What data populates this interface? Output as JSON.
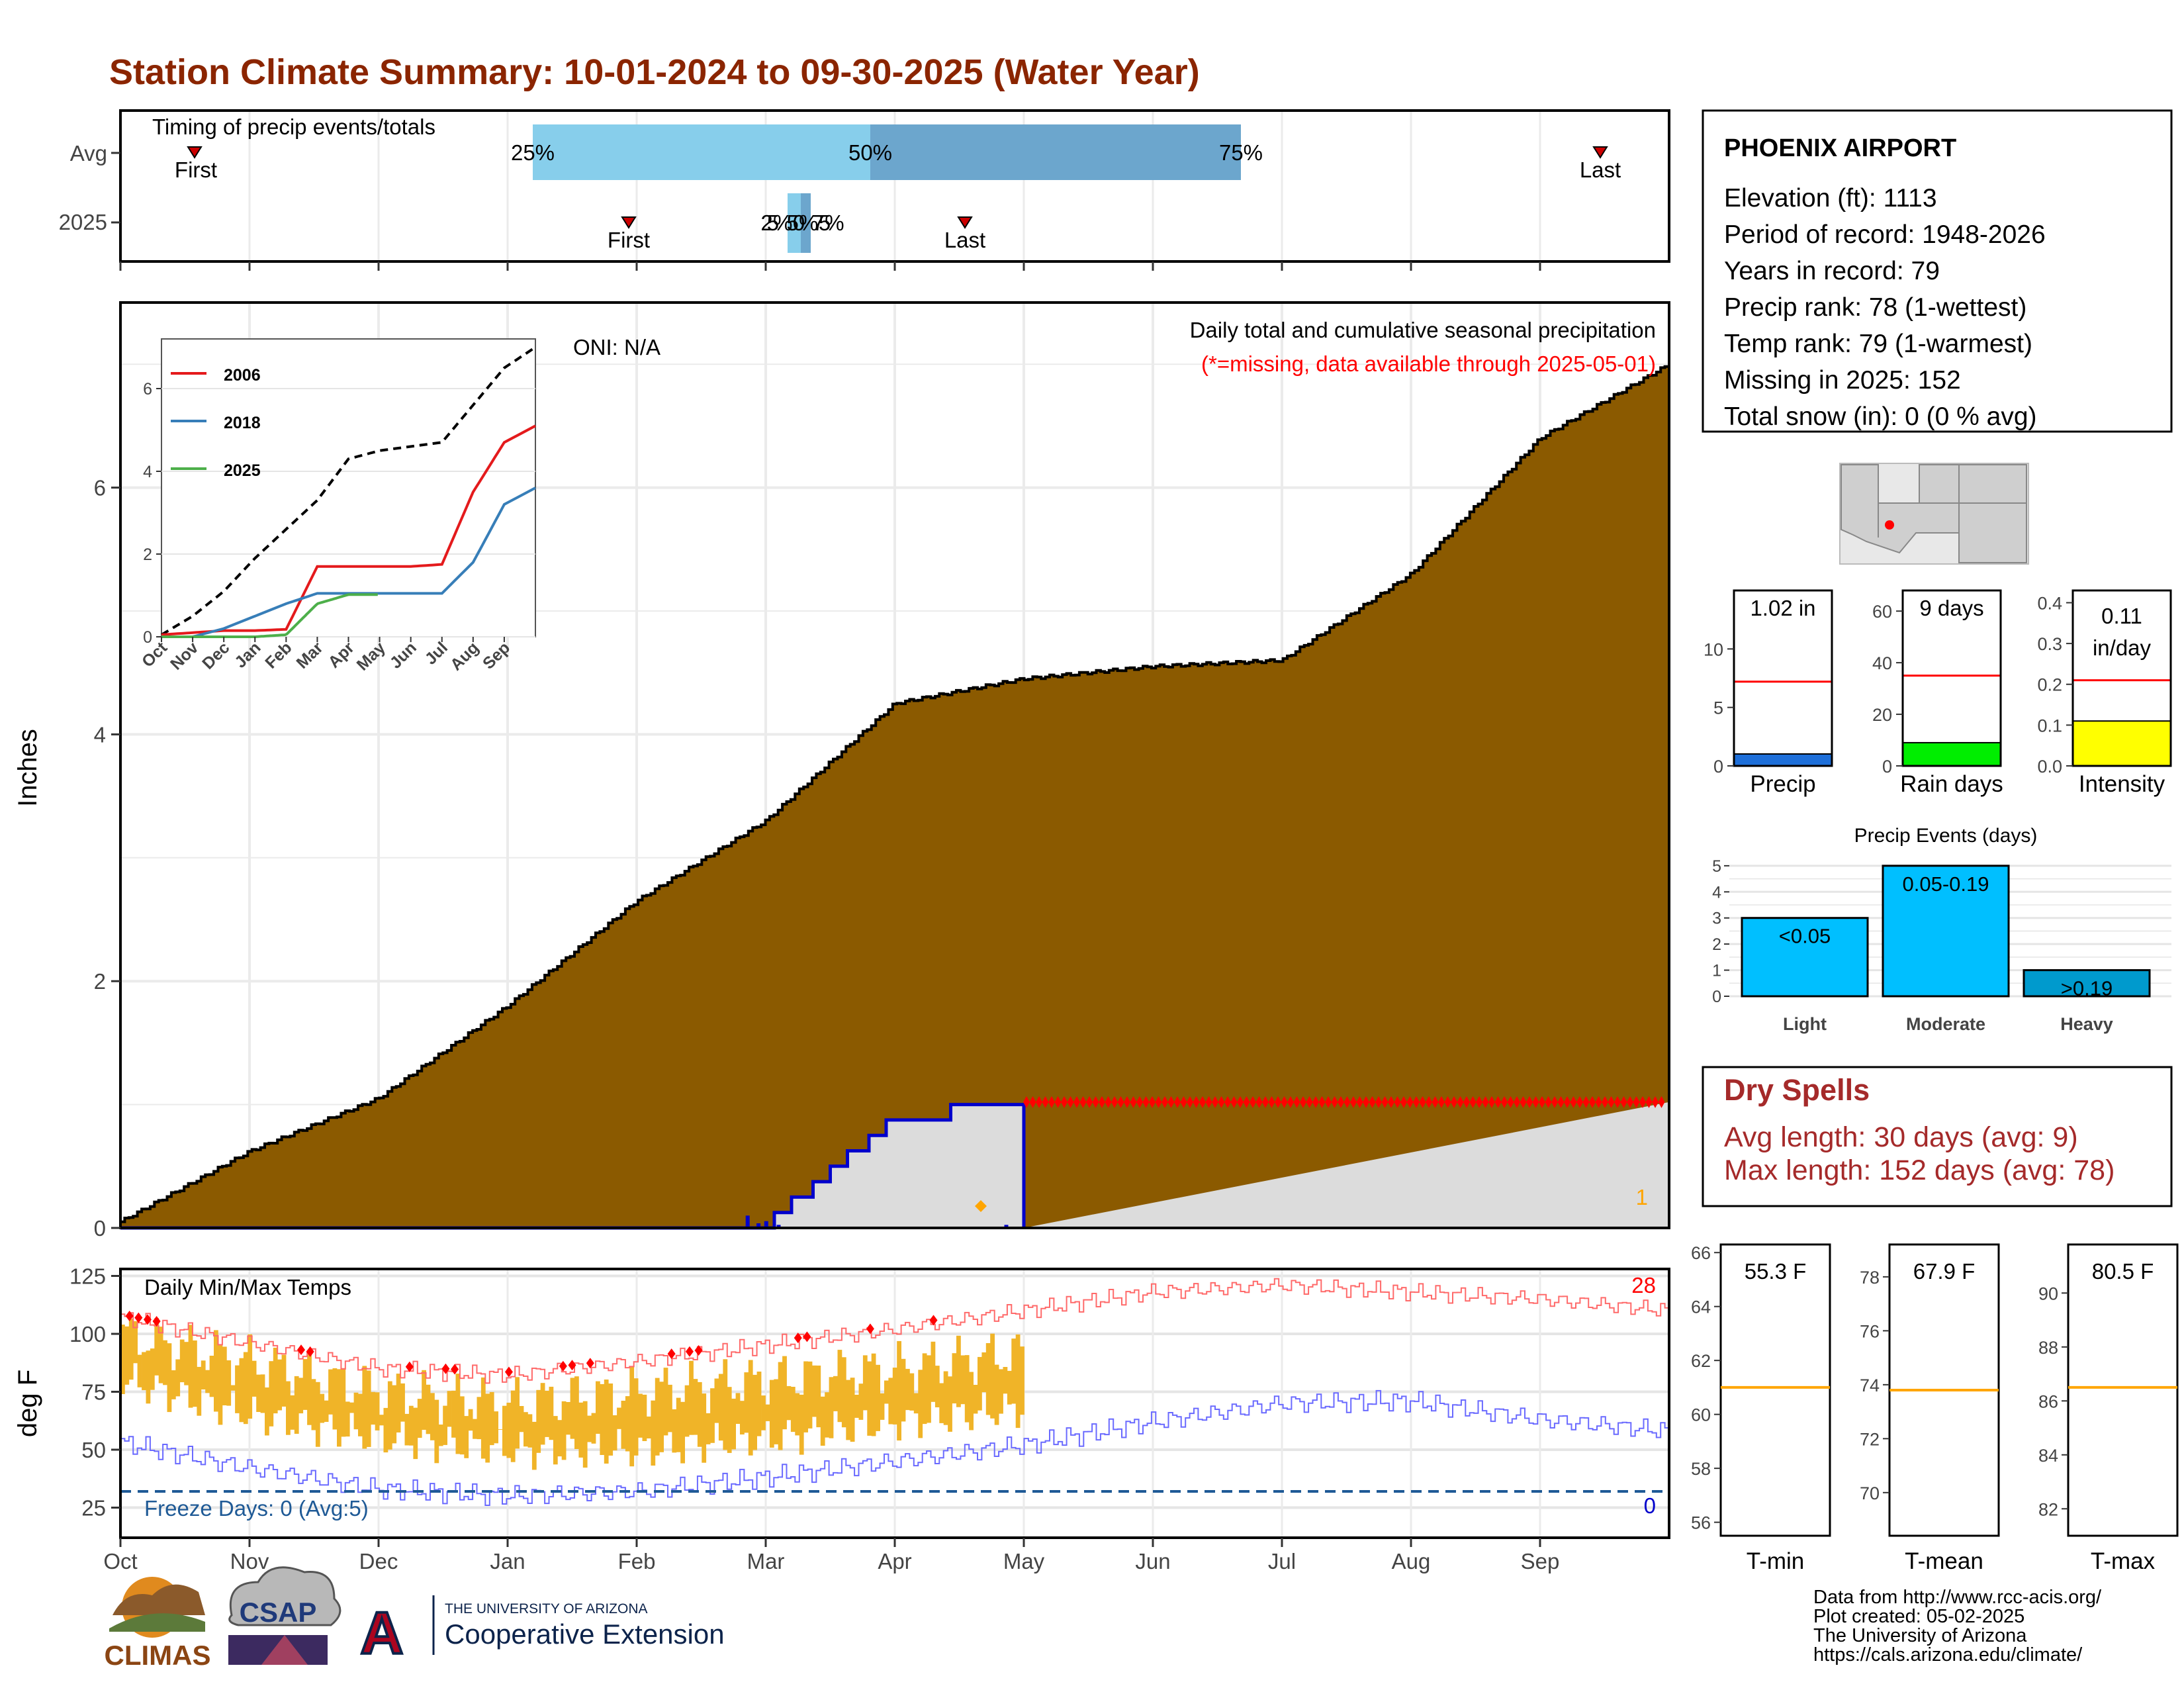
{
  "title": "Station Climate Summary: 10-01-2024 to 09-30-2025 (Water Year)",
  "months": [
    "Oct",
    "Nov",
    "Dec",
    "Jan",
    "Feb",
    "Mar",
    "Apr",
    "May",
    "Jun",
    "Jul",
    "Aug",
    "Sep"
  ],
  "timing": {
    "label": "Timing of precip events/totals",
    "rows": [
      "Avg",
      "2025"
    ],
    "avg_pct": [
      "25%",
      "50%",
      "75%"
    ],
    "y2025_pct": "25%50%75%",
    "first": "First",
    "last": "Last"
  },
  "main": {
    "ylabel": "Inches",
    "yticks": [
      "0",
      "2",
      "4",
      "6"
    ],
    "oni": "ONI: N/A",
    "caption": "Daily total and cumulative seasonal precipitation",
    "missing_note": "(*=missing, data available through 2025-05-01)",
    "count_label": "1"
  },
  "inset": {
    "yticks": [
      "0",
      "2",
      "4",
      "6"
    ],
    "xticks": [
      "Oct",
      "Nov",
      "Dec",
      "Jan",
      "Feb",
      "Mar",
      "Apr",
      "May",
      "Jun",
      "Jul",
      "Aug",
      "Sep"
    ],
    "legend": [
      "2006",
      "2018",
      "2025"
    ]
  },
  "temps": {
    "label": "Daily Min/Max Temps",
    "ylabel": "deg F",
    "yticks": [
      "125",
      "100",
      "75",
      "50",
      "25"
    ],
    "freeze": "Freeze Days: 0 (Avg:5)",
    "hot_count": "28",
    "cold_count": "0"
  },
  "station": {
    "name": "PHOENIX AIRPORT",
    "lines": [
      "Elevation (ft): 1113",
      "Period of record: 1948-2026",
      "Years in record: 79",
      "Precip rank: 78 (1-wettest)",
      "Temp rank: 79 (1-warmest)",
      "Missing in 2025: 152",
      "Total snow (in): 0 (0 % avg)"
    ]
  },
  "mini_bars": [
    {
      "label": "Precip",
      "value_text": "1.02 in",
      "yticks": [
        "0",
        "5",
        "10"
      ]
    },
    {
      "label": "Rain days",
      "value_text": "9 days",
      "yticks": [
        "0",
        "20",
        "40",
        "60"
      ]
    },
    {
      "label": "Intensity",
      "value_text": "0.11",
      "value_text2": "in/day",
      "yticks": [
        "0.0",
        "0.1",
        "0.2",
        "0.3",
        "0.4"
      ]
    }
  ],
  "events": {
    "title": "Precip Events (days)",
    "yticks": [
      "0",
      "1",
      "2",
      "3",
      "4",
      "5"
    ],
    "cats": [
      "Light",
      "Moderate",
      "Heavy"
    ],
    "bar_labels": [
      "<0.05",
      "0.05-0.19",
      ">0.19"
    ]
  },
  "dry": {
    "title": "Dry Spells",
    "avg": "Avg length: 30 days (avg: 9)",
    "max": "Max length: 152 days (avg: 78)"
  },
  "temp_boxes": [
    {
      "label": "T-min",
      "value_text": "55.3 F",
      "yticks": [
        "56",
        "58",
        "60",
        "62",
        "64",
        "66"
      ]
    },
    {
      "label": "T-mean",
      "value_text": "67.9 F",
      "yticks": [
        "70",
        "72",
        "74",
        "76",
        "78"
      ]
    },
    {
      "label": "T-max",
      "value_text": "80.5 F",
      "yticks": [
        "82",
        "84",
        "86",
        "88",
        "90"
      ]
    }
  ],
  "footer": [
    "Data from http://www.rcc-acis.org/",
    "Plot created: 05-02-2025",
    "The University of Arizona",
    "https://cals.arizona.edu/climate/"
  ],
  "logos": {
    "climas": "CLIMAS",
    "csap": "CSAP",
    "ua_small": "THE UNIVERSITY OF ARIZONA",
    "ua_big": "Cooperative Extension",
    "ua_letter": "A"
  },
  "chart_data": [
    {
      "type": "area",
      "title": "Daily total and cumulative seasonal precipitation",
      "ylabel": "Inches",
      "ylim": [
        0,
        7.5
      ],
      "x": [
        "Oct",
        "Nov",
        "Dec",
        "Jan",
        "Feb",
        "Mar",
        "Apr",
        "May",
        "Jun",
        "Jul",
        "Aug",
        "Sep",
        "Sep30"
      ],
      "series": [
        {
          "name": "avg_cumulative",
          "values": [
            0.05,
            0.62,
            1.05,
            1.8,
            2.65,
            3.3,
            4.25,
            4.45,
            4.55,
            4.6,
            5.3,
            6.4,
            7.0
          ]
        },
        {
          "name": "2025_cumulative",
          "values": [
            0,
            0,
            0,
            0,
            0,
            0.02,
            0.88,
            1.02,
            null,
            null,
            null,
            null,
            null
          ]
        }
      ],
      "colors": {
        "avg": "#8B5A00",
        "y2025": "#0000CC",
        "fill2025": "#DCDCDC",
        "missing": "#FF0000"
      }
    },
    {
      "type": "line",
      "title": "",
      "ylim": [
        0,
        7.2
      ],
      "x": [
        "Oct",
        "Nov",
        "Dec",
        "Jan",
        "Feb",
        "Mar",
        "Apr",
        "May",
        "Jun",
        "Jul",
        "Aug",
        "Sep",
        "Sep30"
      ],
      "series": [
        {
          "name": "avg",
          "values": [
            0.05,
            0.5,
            1.1,
            1.9,
            2.6,
            3.3,
            4.3,
            4.5,
            4.6,
            4.7,
            5.6,
            6.5,
            7.0
          ]
        },
        {
          "name": "2006",
          "values": [
            0.05,
            0.1,
            0.15,
            0.15,
            0.18,
            1.7,
            1.7,
            1.7,
            1.7,
            1.75,
            3.5,
            4.7,
            5.1
          ]
        },
        {
          "name": "2018",
          "values": [
            0,
            0,
            0.2,
            0.5,
            0.8,
            1.05,
            1.05,
            1.05,
            1.05,
            1.05,
            1.8,
            3.2,
            3.6
          ]
        },
        {
          "name": "2025",
          "values": [
            0,
            0,
            0,
            0,
            0.05,
            0.8,
            1.02,
            1.02,
            null,
            null,
            null,
            null,
            null
          ]
        }
      ]
    },
    {
      "type": "line",
      "title": "Daily Min/Max Temps",
      "ylabel": "deg F",
      "ylim": [
        12,
        128
      ],
      "x": [
        "Oct",
        "Nov",
        "Dec",
        "Jan",
        "Feb",
        "Mar",
        "Apr",
        "May",
        "Jun",
        "Jul",
        "Aug",
        "Sep",
        "Sep30"
      ],
      "series": [
        {
          "name": "record_high",
          "values": [
            107,
            96,
            85,
            82,
            88,
            95,
            102,
            110,
            118,
            121,
            118,
            115,
            110
          ]
        },
        {
          "name": "record_low",
          "values": [
            53,
            42,
            33,
            30,
            32,
            38,
            45,
            52,
            62,
            70,
            71,
            63,
            58
          ]
        },
        {
          "name": "2025_high",
          "values": [
            100,
            88,
            75,
            70,
            75,
            80,
            85,
            92,
            null,
            null,
            null,
            null,
            null
          ]
        },
        {
          "name": "2025_low",
          "values": [
            80,
            65,
            55,
            50,
            50,
            55,
            62,
            68,
            null,
            null,
            null,
            null,
            null
          ]
        }
      ],
      "freeze_line": 32
    },
    {
      "type": "bar",
      "title": "Precip Events (days)",
      "categories": [
        "Light",
        "Moderate",
        "Heavy"
      ],
      "values": [
        3,
        5,
        1
      ],
      "ylim": [
        0,
        5.2
      ]
    },
    {
      "type": "bar",
      "categories": [
        "Precip",
        "Rain days",
        "Intensity"
      ],
      "values": [
        1.02,
        9,
        0.11
      ],
      "avg_lines": [
        7.2,
        35,
        0.21
      ],
      "ylims": [
        [
          0,
          15
        ],
        [
          0,
          68
        ],
        [
          0,
          0.43
        ]
      ]
    },
    {
      "type": "bar",
      "categories": [
        "T-min",
        "T-mean",
        "T-max"
      ],
      "values": [
        55.3,
        67.9,
        80.5
      ],
      "avg_lines": [
        61.0,
        73.8,
        86.5
      ],
      "ylims": [
        [
          55.5,
          66.3
        ],
        [
          68.4,
          79.2
        ],
        [
          81.0,
          91.8
        ]
      ]
    }
  ]
}
